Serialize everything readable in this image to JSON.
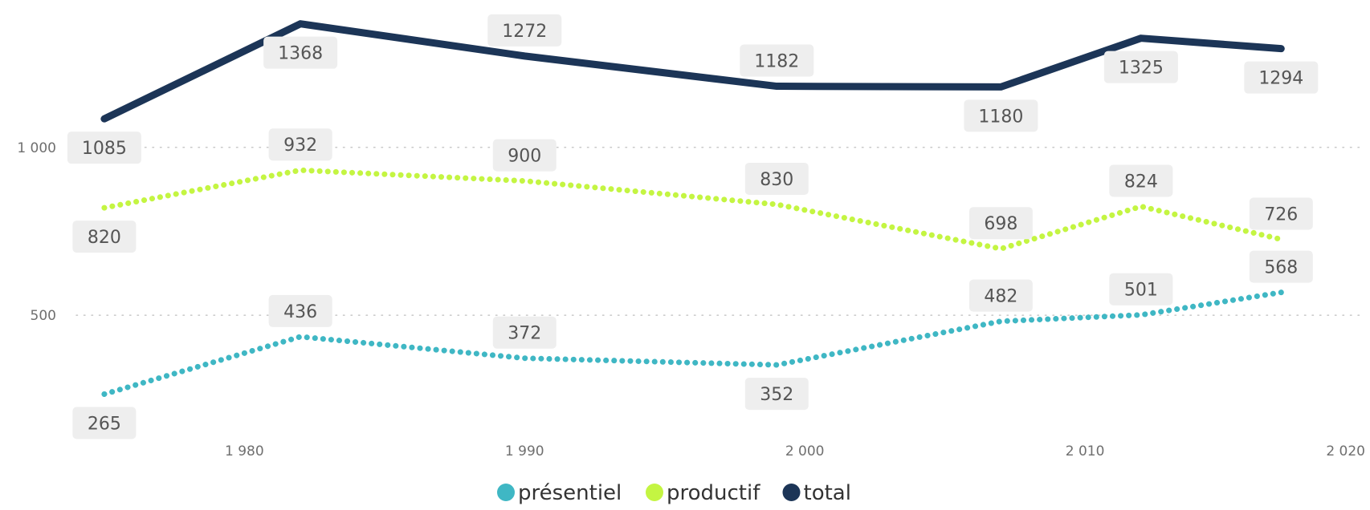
{
  "chart_data": {
    "type": "line",
    "x": [
      1975,
      1982,
      1990,
      1999,
      2007,
      2012,
      2017
    ],
    "series": [
      {
        "name": "présentiel",
        "color": "#3fb7c4",
        "style": "dotted",
        "values": [
          265,
          436,
          372,
          352,
          482,
          501,
          568
        ]
      },
      {
        "name": "productif",
        "color": "#c4f542",
        "style": "dotted",
        "values": [
          820,
          932,
          900,
          830,
          698,
          824,
          726
        ]
      },
      {
        "name": "total",
        "color": "#1c3557",
        "style": "solid",
        "values": [
          1085,
          1368,
          1272,
          1182,
          1180,
          1325,
          1294
        ]
      }
    ],
    "x_ticks": [
      1980,
      1990,
      2000,
      2010,
      2020
    ],
    "x_tick_labels": [
      "1 980",
      "1 990",
      "2 000",
      "2 010",
      "2 020"
    ],
    "y_ticks": [
      500,
      1000
    ],
    "y_tick_labels": [
      "500",
      "1 000"
    ],
    "xlim": [
      1974,
      2020
    ],
    "ylim": [
      185,
      1415
    ],
    "grid": "horizontal dotted",
    "legend": "bottom-center",
    "title": "",
    "xlabel": "",
    "ylabel": ""
  }
}
